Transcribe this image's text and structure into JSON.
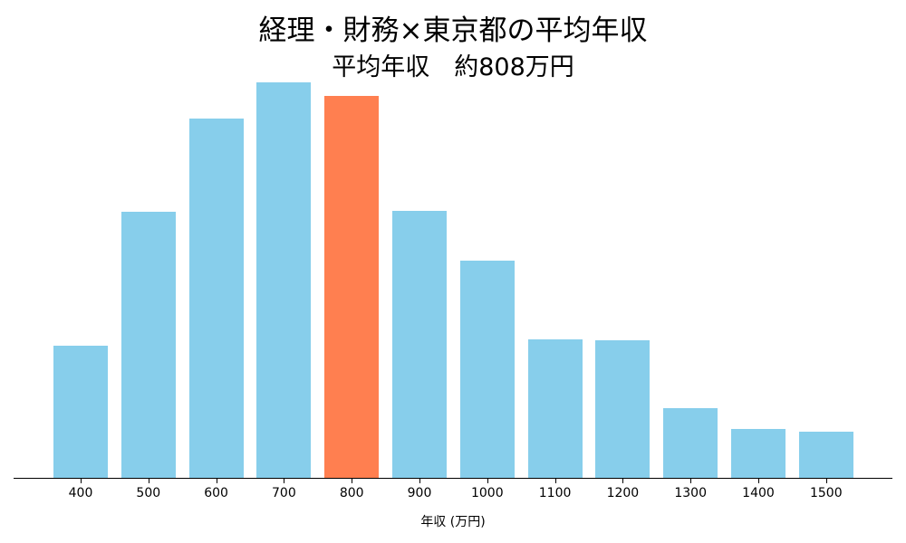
{
  "chart_data": {
    "type": "bar",
    "title": "経理・財務×東京都の平均年収",
    "subtitle": "平均年収　約808万円",
    "xlabel": "年収 (万円)",
    "ylabel": "",
    "categories": [
      "400",
      "500",
      "600",
      "700",
      "800",
      "900",
      "1000",
      "1100",
      "1200",
      "1300",
      "1400",
      "1500"
    ],
    "values": [
      146,
      294,
      397,
      437,
      422,
      295,
      240,
      153,
      152,
      77,
      54,
      51
    ],
    "value_units": "relative bar height (no y-axis shown)",
    "highlight_category": "800",
    "colors": {
      "default": "#87CEEB",
      "highlight": "#FF7F50"
    },
    "grid": false,
    "legend": null
  }
}
